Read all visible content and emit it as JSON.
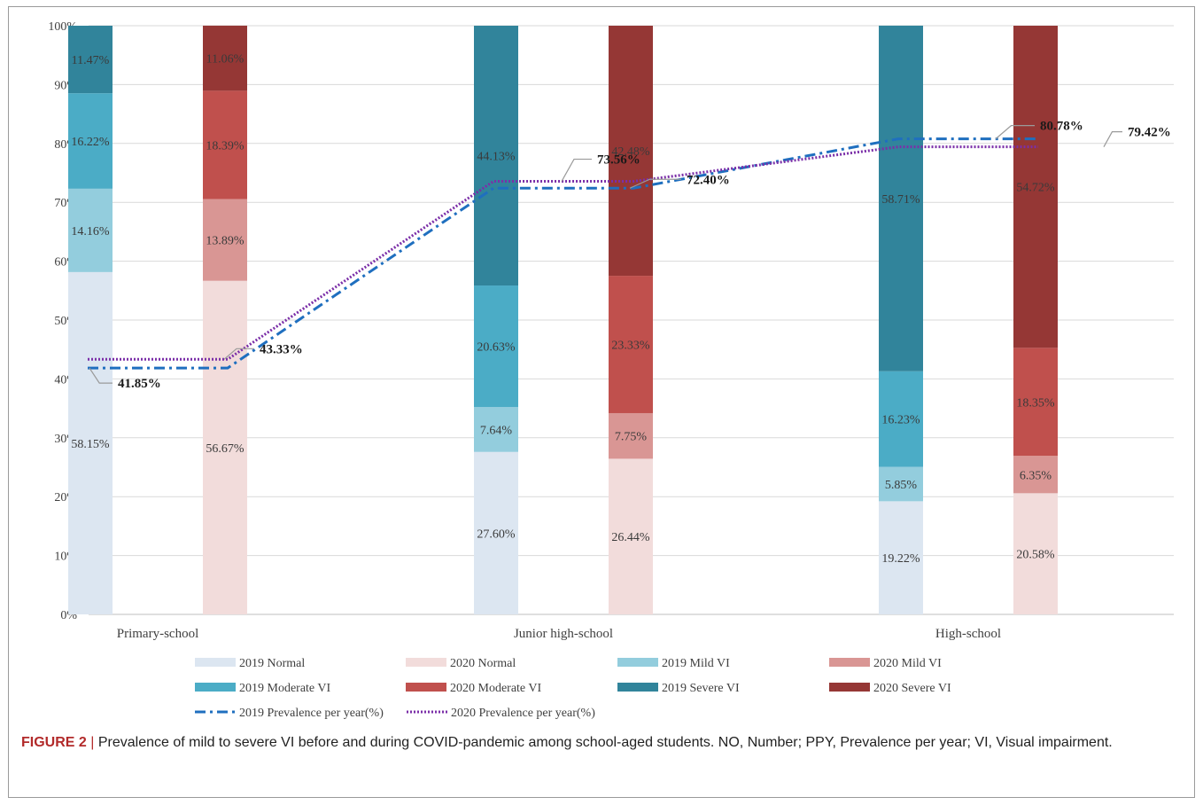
{
  "figure": {
    "caption_label": "FIGURE 2",
    "caption_separator": "|",
    "caption_text": "Prevalence of mild to severe VI before and during COVID-pandemic among school-aged students. NO, Number; PPY, Prevalence per year; VI, Visual impairment."
  },
  "chart_data": {
    "type": "bar",
    "stacked": true,
    "title": "",
    "xlabel": "",
    "ylabel": "",
    "categories": [
      "Primary-school",
      "Junior high-school",
      "High-school"
    ],
    "ylim": [
      0,
      100
    ],
    "y_ticks": [
      "0%",
      "10%",
      "20%",
      "30%",
      "40%",
      "50%",
      "60%",
      "70%",
      "80%",
      "90%",
      "100%"
    ],
    "grid": true,
    "legend_position": "bottom",
    "bar_groups": [
      {
        "year": "2019",
        "stacks": [
          {
            "category": "Primary-school",
            "segments": [
              {
                "series": "2019 Normal",
                "value": 58.15,
                "label": "58.15%"
              },
              {
                "series": "2019 Mild VI",
                "value": 14.16,
                "label": "14.16%"
              },
              {
                "series": "2019 Moderate VI",
                "value": 16.22,
                "label": "16.22%"
              },
              {
                "series": "2019 Severe VI",
                "value": 11.47,
                "label": "11.47%"
              }
            ]
          },
          {
            "category": "Junior high-school",
            "segments": [
              {
                "series": "2019 Normal",
                "value": 27.6,
                "label": "27.60%"
              },
              {
                "series": "2019 Mild VI",
                "value": 7.64,
                "label": "7.64%"
              },
              {
                "series": "2019 Moderate VI",
                "value": 20.63,
                "label": "20.63%"
              },
              {
                "series": "2019 Severe VI",
                "value": 44.13,
                "label": "44.13%"
              }
            ]
          },
          {
            "category": "High-school",
            "segments": [
              {
                "series": "2019 Normal",
                "value": 19.22,
                "label": "19.22%"
              },
              {
                "series": "2019 Mild VI",
                "value": 5.85,
                "label": "5.85%"
              },
              {
                "series": "2019 Moderate VI",
                "value": 16.23,
                "label": "16.23%"
              },
              {
                "series": "2019 Severe VI",
                "value": 58.71,
                "label": "58.71%"
              }
            ]
          }
        ]
      },
      {
        "year": "2020",
        "stacks": [
          {
            "category": "Primary-school",
            "segments": [
              {
                "series": "2020 Normal",
                "value": 56.67,
                "label": "56.67%"
              },
              {
                "series": "2020 Mild VI",
                "value": 13.89,
                "label": "13.89%"
              },
              {
                "series": "2020 Moderate VI",
                "value": 18.39,
                "label": "18.39%"
              },
              {
                "series": "2020 Severe VI",
                "value": 11.06,
                "label": "11.06%"
              }
            ]
          },
          {
            "category": "Junior high-school",
            "segments": [
              {
                "series": "2020 Normal",
                "value": 26.44,
                "label": "26.44%"
              },
              {
                "series": "2020 Mild VI",
                "value": 7.75,
                "label": "7.75%"
              },
              {
                "series": "2020 Moderate VI",
                "value": 23.33,
                "label": "23.33%"
              },
              {
                "series": "2020 Severe VI",
                "value": 42.48,
                "label": "42.48%"
              }
            ]
          },
          {
            "category": "High-school",
            "segments": [
              {
                "series": "2020 Normal",
                "value": 20.58,
                "label": "20.58%"
              },
              {
                "series": "2020 Mild VI",
                "value": 6.35,
                "label": "6.35%"
              },
              {
                "series": "2020 Moderate VI",
                "value": 18.35,
                "label": "18.35%"
              },
              {
                "series": "2020 Severe VI",
                "value": 54.72,
                "label": "54.72%"
              }
            ]
          }
        ]
      }
    ],
    "lines": [
      {
        "name": "2019 Prevalence per year(%)",
        "color": "#1f6fbf",
        "style": "dash-dot",
        "values": [
          41.85,
          72.4,
          80.78
        ],
        "labels": [
          "41.85%",
          "72.40%",
          "80.78%"
        ]
      },
      {
        "name": "2020 Prevalence per year(%)",
        "color": "#7b2fa8",
        "style": "dotted",
        "values": [
          43.33,
          73.56,
          79.42
        ],
        "labels": [
          "43.33%",
          "73.56%",
          "79.42%"
        ]
      }
    ],
    "series_colors": {
      "2019 Normal": "#dce6f1",
      "2020 Normal": "#f2dcdb",
      "2019 Mild VI": "#93cddd",
      "2020 Mild VI": "#d99694",
      "2019 Moderate VI": "#4bacc6",
      "2020 Moderate VI": "#c0504d",
      "2019 Severe VI": "#31849b",
      "2020 Severe VI": "#953735"
    },
    "legend": [
      "2019 Normal",
      "2020 Normal",
      "2019 Mild VI",
      "2020 Mild VI",
      "2019 Moderate VI",
      "2020 Moderate VI",
      "2019 Severe VI",
      "2020 Severe VI",
      "2019 Prevalence per year(%)",
      "2020 Prevalence per year(%)"
    ]
  }
}
